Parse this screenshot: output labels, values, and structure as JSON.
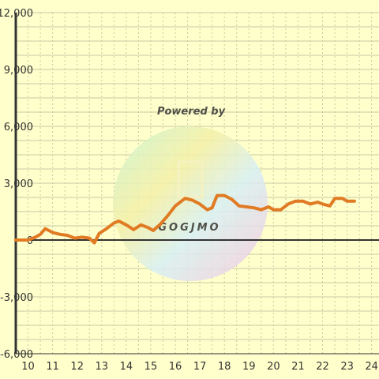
{
  "colors": {
    "background": "#ffffcc",
    "grid": "#c9c9a6",
    "axis": "#333333",
    "series": "#e07b24"
  },
  "watermark": {
    "text": "Powered by",
    "logo_text": "GOGJMO"
  },
  "chart_data": {
    "type": "line",
    "title": "",
    "xlabel": "",
    "ylabel": "",
    "xlim": [
      9.5,
      24.3
    ],
    "ylim": [
      -6000,
      12000
    ],
    "x_ticks": [
      10,
      11,
      12,
      13,
      14,
      15,
      16,
      17,
      18,
      19,
      20,
      21,
      22,
      23,
      24
    ],
    "y_ticks": [
      -6000,
      -3000,
      0,
      3000,
      6000,
      9000,
      12000
    ],
    "x_tick_labels": [
      "10",
      "11",
      "12",
      "13",
      "14",
      "15",
      "16",
      "17",
      "18",
      "19",
      "20",
      "21",
      "22",
      "23",
      "24"
    ],
    "y_tick_labels": [
      "-6,000",
      "-3,000",
      "0",
      "3,000",
      "6,000",
      "9,000",
      "12,000"
    ],
    "grid": true,
    "series": [
      {
        "values": [
          [
            9.5,
            0
          ],
          [
            10.0,
            0
          ],
          [
            10.3,
            150
          ],
          [
            10.5,
            300
          ],
          [
            10.7,
            600
          ],
          [
            11.0,
            400
          ],
          [
            11.3,
            300
          ],
          [
            11.6,
            250
          ],
          [
            11.9,
            100
          ],
          [
            12.2,
            150
          ],
          [
            12.5,
            100
          ],
          [
            12.7,
            -150
          ],
          [
            12.9,
            350
          ],
          [
            13.2,
            600
          ],
          [
            13.5,
            900
          ],
          [
            13.7,
            1000
          ],
          [
            14.0,
            800
          ],
          [
            14.3,
            550
          ],
          [
            14.6,
            800
          ],
          [
            14.9,
            650
          ],
          [
            15.1,
            500
          ],
          [
            15.4,
            850
          ],
          [
            15.7,
            1300
          ],
          [
            16.0,
            1800
          ],
          [
            16.4,
            2200
          ],
          [
            16.7,
            2100
          ],
          [
            17.0,
            1900
          ],
          [
            17.3,
            1600
          ],
          [
            17.5,
            1700
          ],
          [
            17.7,
            2350
          ],
          [
            18.0,
            2350
          ],
          [
            18.3,
            2150
          ],
          [
            18.6,
            1800
          ],
          [
            18.9,
            1750
          ],
          [
            19.2,
            1700
          ],
          [
            19.5,
            1600
          ],
          [
            19.8,
            1750
          ],
          [
            20.0,
            1600
          ],
          [
            20.3,
            1600
          ],
          [
            20.6,
            1900
          ],
          [
            20.9,
            2050
          ],
          [
            21.2,
            2050
          ],
          [
            21.5,
            1900
          ],
          [
            21.8,
            2000
          ],
          [
            22.0,
            1900
          ],
          [
            22.3,
            1800
          ],
          [
            22.5,
            2200
          ],
          [
            22.8,
            2200
          ],
          [
            23.0,
            2050
          ],
          [
            23.3,
            2050
          ]
        ]
      }
    ]
  }
}
